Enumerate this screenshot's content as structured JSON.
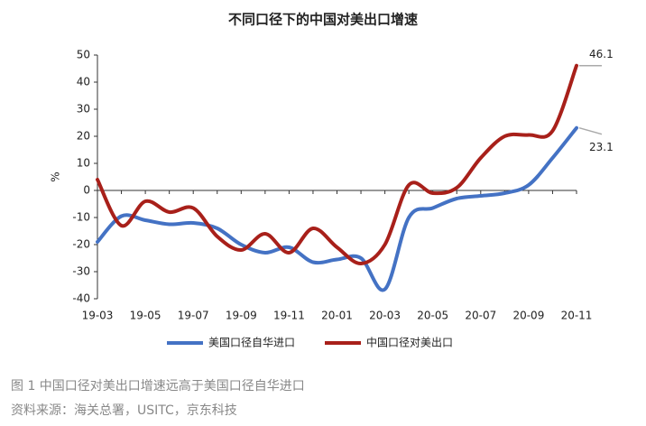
{
  "chart_data": {
    "type": "line",
    "title": "不同口径下的中国对美出口增速",
    "y_label": "%",
    "categories": [
      "19-03",
      null,
      "19-05",
      null,
      "19-07",
      null,
      "19-09",
      null,
      "19-11",
      null,
      "20-01",
      null,
      "20-03",
      null,
      "20-05",
      null,
      "20-07",
      null,
      "20-09",
      null,
      "20-11"
    ],
    "series": [
      {
        "name": "美国口径自华进口",
        "color": "#4472c4",
        "values": [
          -19,
          -9.5,
          -11,
          -12.5,
          -12,
          -14,
          -20,
          -23,
          -21,
          -26.5,
          -25.5,
          -25,
          -36.5,
          -10,
          -6.5,
          -3,
          -2,
          -1,
          2,
          12,
          23.1
        ]
      },
      {
        "name": "中国口径对美出口",
        "color": "#a8201a",
        "values": [
          4,
          -13,
          -4,
          -8,
          -6.5,
          -17,
          -22,
          -16,
          -23,
          -14,
          -21,
          -27,
          -20,
          2,
          -1,
          1,
          12,
          20,
          20.5,
          22,
          46.1
        ]
      }
    ],
    "ylim": [
      -40,
      50
    ],
    "yticks": [
      -40,
      -30,
      -20,
      -10,
      0,
      10,
      20,
      30,
      40,
      50
    ],
    "legend": "bottom",
    "caption": "图 1 中国口径对美出口增速远高于美国口径自华进口",
    "source": "资料来源：海关总署，USITC，京东科技"
  }
}
